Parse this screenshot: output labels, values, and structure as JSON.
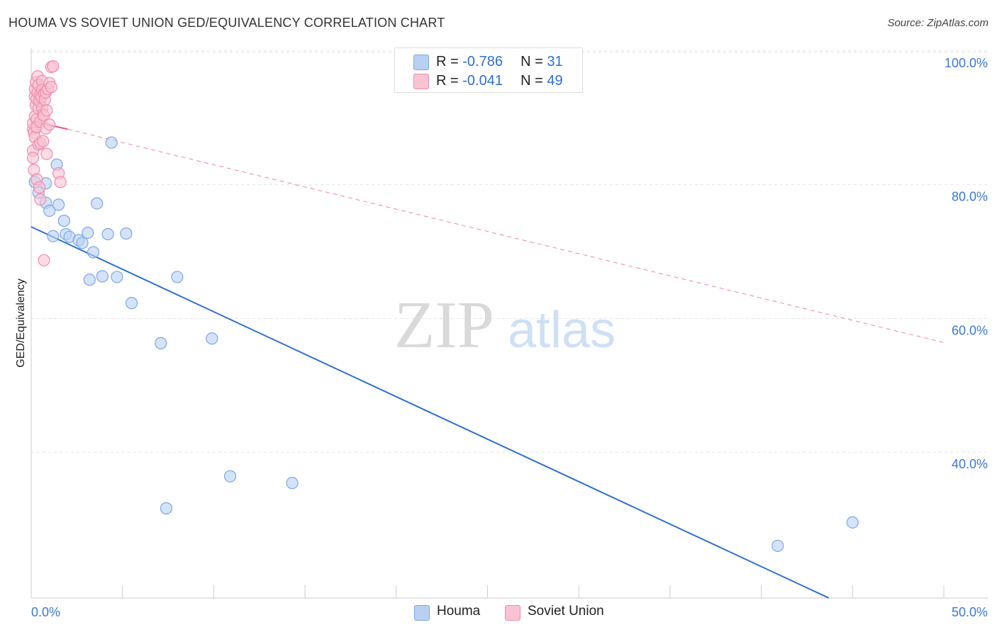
{
  "title": "HOUMA VS SOVIET UNION GED/EQUIVALENCY CORRELATION CHART",
  "source": "Source: ZipAtlas.com",
  "watermark": {
    "zip": "ZIP",
    "atlas": "atlas"
  },
  "legend_stats": [
    {
      "r_label": "R =",
      "r_value": "-0.786",
      "n_label": "N =",
      "n_value": "31",
      "color": "#7ba7e6",
      "fill": "#b9d0f3"
    },
    {
      "r_label": "R =",
      "r_value": "-0.041",
      "n_label": "N =",
      "n_value": "49",
      "color": "#f08cab",
      "fill": "#f9c3d4"
    }
  ],
  "chart_data": {
    "type": "scatter",
    "title": "HOUMA VS SOVIET UNION GED/EQUIVALENCY CORRELATION CHART",
    "xlabel": "",
    "ylabel": "GED/Equivalency",
    "xlim": [
      0,
      50
    ],
    "ylim": [
      20,
      102
    ],
    "x_tick_labels": [
      "0.0%",
      "50.0%"
    ],
    "y_ticks": [
      40,
      60,
      80,
      100
    ],
    "y_tick_labels": [
      "40.0%",
      "60.0%",
      "80.0%",
      "100.0%"
    ],
    "grid": true,
    "legend_position": "bottom-center",
    "series": [
      {
        "name": "Houma",
        "color": "#7ba7e6",
        "fill": "#b9d0f3",
        "trend": {
          "x": [
            0,
            43.7
          ],
          "y": [
            75.5,
            20
          ],
          "style": "solid",
          "color": "#2e6fd0"
        },
        "points": [
          [
            0.2,
            82.2
          ],
          [
            0.4,
            80.6
          ],
          [
            0.8,
            82.0
          ],
          [
            0.8,
            79.1
          ],
          [
            1.0,
            77.9
          ],
          [
            1.2,
            74.1
          ],
          [
            1.4,
            84.8
          ],
          [
            1.5,
            78.8
          ],
          [
            1.8,
            76.4
          ],
          [
            1.9,
            74.4
          ],
          [
            2.1,
            74.0
          ],
          [
            2.6,
            73.5
          ],
          [
            2.8,
            73.1
          ],
          [
            3.1,
            74.6
          ],
          [
            3.2,
            67.6
          ],
          [
            3.4,
            71.7
          ],
          [
            3.6,
            79.0
          ],
          [
            3.9,
            68.1
          ],
          [
            4.2,
            74.4
          ],
          [
            4.4,
            88.1
          ],
          [
            4.7,
            68.0
          ],
          [
            5.2,
            74.5
          ],
          [
            5.5,
            64.1
          ],
          [
            7.1,
            58.1
          ],
          [
            7.4,
            33.4
          ],
          [
            8.0,
            68.0
          ],
          [
            9.9,
            58.8
          ],
          [
            10.9,
            38.2
          ],
          [
            14.3,
            37.2
          ],
          [
            40.9,
            27.8
          ],
          [
            45.0,
            31.3
          ]
        ]
      },
      {
        "name": "Soviet Union",
        "color": "#f08cab",
        "fill": "#f9c3d4",
        "trend": {
          "x": [
            0,
            2.0
          ],
          "y": [
            91.3,
            90.1
          ],
          "style": "solid",
          "color": "#e0557f",
          "extension": {
            "x": [
              2.0,
              50
            ],
            "y": [
              90.1,
              58.2
            ],
            "style": "dashed"
          }
        },
        "points": [
          [
            0.1,
            90.1
          ],
          [
            0.1,
            91.0
          ],
          [
            0.1,
            86.9
          ],
          [
            0.1,
            85.8
          ],
          [
            0.15,
            89.6
          ],
          [
            0.15,
            84.0
          ],
          [
            0.2,
            92.0
          ],
          [
            0.2,
            95.0
          ],
          [
            0.2,
            96.1
          ],
          [
            0.2,
            88.9
          ],
          [
            0.25,
            93.7
          ],
          [
            0.25,
            97.1
          ],
          [
            0.3,
            91.6
          ],
          [
            0.3,
            94.6
          ],
          [
            0.3,
            82.6
          ],
          [
            0.3,
            90.4
          ],
          [
            0.35,
            95.6
          ],
          [
            0.35,
            98.0
          ],
          [
            0.4,
            93.2
          ],
          [
            0.4,
            87.8
          ],
          [
            0.4,
            96.7
          ],
          [
            0.45,
            94.3
          ],
          [
            0.45,
            81.4
          ],
          [
            0.5,
            95.3
          ],
          [
            0.5,
            91.2
          ],
          [
            0.5,
            88.0
          ],
          [
            0.5,
            79.6
          ],
          [
            0.55,
            94.9
          ],
          [
            0.6,
            93.3
          ],
          [
            0.6,
            97.3
          ],
          [
            0.6,
            96.0
          ],
          [
            0.65,
            92.3
          ],
          [
            0.65,
            88.3
          ],
          [
            0.7,
            95.4
          ],
          [
            0.7,
            92.1
          ],
          [
            0.7,
            70.5
          ],
          [
            0.75,
            94.5
          ],
          [
            0.8,
            95.6
          ],
          [
            0.8,
            90.2
          ],
          [
            0.85,
            86.4
          ],
          [
            0.85,
            92.9
          ],
          [
            0.9,
            96.1
          ],
          [
            1.0,
            97.0
          ],
          [
            1.0,
            90.8
          ],
          [
            1.1,
            99.4
          ],
          [
            1.1,
            96.4
          ],
          [
            1.2,
            99.5
          ],
          [
            1.5,
            83.5
          ],
          [
            1.6,
            82.2
          ]
        ]
      }
    ]
  }
}
